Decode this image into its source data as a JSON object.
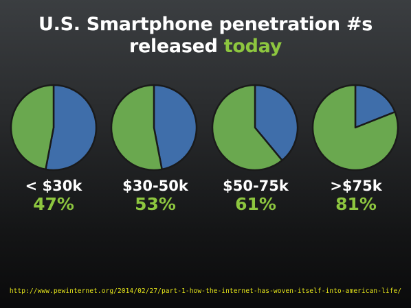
{
  "title": {
    "line1": "U.S. Smartphone penetration #s",
    "line2_prefix": "released ",
    "line2_accent": "today"
  },
  "colors": {
    "smartphone": "#3f6eaa",
    "non_smartphone": "#6aa84f",
    "outline": "#1a1a1a",
    "accent_text": "#8dc63f",
    "source_text": "#e4e41a"
  },
  "chart_data": {
    "type": "pie",
    "categories": [
      "< $30k",
      "$30-50k",
      "$50-75k",
      ">$75k"
    ],
    "values": [
      47,
      53,
      61,
      81
    ],
    "value_labels": [
      "47%",
      "53%",
      "61%",
      "81%"
    ],
    "pie_slices": [
      {
        "blue": 53,
        "green": 47
      },
      {
        "blue": 47,
        "green": 53
      },
      {
        "blue": 39,
        "green": 61
      },
      {
        "blue": 19,
        "green": 81
      }
    ]
  },
  "source_url": "http://www.pewinternet.org/2014/02/27/part-1-how-the-internet-has-woven-itself-into-american-life/"
}
